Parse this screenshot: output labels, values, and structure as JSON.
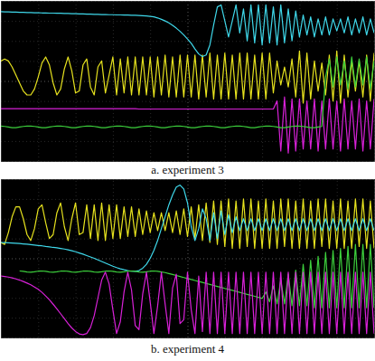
{
  "chart_data": [
    {
      "type": "line",
      "title": "a. experiment 3",
      "grid": true,
      "tick_labels": false,
      "xlim": [
        0,
        10
      ],
      "ylim": [
        -4,
        4
      ],
      "xticks": [
        0,
        1,
        2,
        3,
        4,
        5,
        6,
        7,
        8,
        9,
        10
      ],
      "yticks": [
        -4,
        -3,
        -2,
        -1,
        0,
        1,
        2,
        3,
        4
      ],
      "x": [
        0,
        0.1,
        0.2,
        0.3,
        0.4,
        0.5,
        0.6,
        0.7,
        0.8,
        0.9,
        1,
        1.1,
        1.2,
        1.3,
        1.4,
        1.5,
        1.6,
        1.7,
        1.8,
        1.9,
        2,
        2.1,
        2.2,
        2.3,
        2.4,
        2.5,
        2.6,
        2.7,
        2.8,
        2.9,
        3,
        3.1,
        3.2,
        3.3,
        3.4,
        3.5,
        3.6,
        3.7,
        3.8,
        3.9,
        4,
        4.1,
        4.2,
        4.3,
        4.4,
        4.5,
        4.6,
        4.7,
        4.8,
        4.9,
        5,
        5.1,
        5.2,
        5.3,
        5.4,
        5.5,
        5.6,
        5.7,
        5.8,
        5.9,
        6,
        6.1,
        6.2,
        6.3,
        6.4,
        6.5,
        6.6,
        6.7,
        6.8,
        6.9,
        7,
        7.1,
        7.2,
        7.3,
        7.4,
        7.5,
        7.6,
        7.7,
        7.8,
        7.9,
        8,
        8.1,
        8.2,
        8.3,
        8.4,
        8.5,
        8.6,
        8.7,
        8.8,
        8.9,
        9,
        9.1,
        9.2,
        9.3,
        9.4,
        9.5,
        9.6,
        9.7,
        9.8,
        9.9,
        10
      ],
      "series": [
        {
          "color": "#e6e21e",
          "values": [
            1.0,
            1.1,
            1.0,
            0.7,
            0.3,
            -0.1,
            -0.5,
            -0.7,
            -0.7,
            -0.4,
            0.2,
            0.9,
            1.2,
            0.8,
            -0.1,
            -0.7,
            -0.4,
            0.6,
            1.2,
            0.5,
            -0.6,
            -0.5,
            0.8,
            1.1,
            -0.3,
            -0.7,
            0.7,
            1.0,
            -0.6,
            0.3,
            1.2,
            -0.7,
            1.1,
            -0.6,
            1.2,
            -0.7,
            1.2,
            -0.7,
            1.2,
            -0.7,
            1.2,
            -0.8,
            1.2,
            -0.7,
            1.3,
            -0.8,
            1.2,
            -0.8,
            1.3,
            -0.8,
            1.3,
            -0.8,
            1.3,
            -0.9,
            1.3,
            -0.8,
            1.4,
            -0.9,
            1.3,
            -0.9,
            1.4,
            -0.9,
            1.3,
            -0.9,
            1.4,
            -0.9,
            1.4,
            -0.9,
            1.3,
            -0.9,
            1.4,
            -0.9,
            1.4,
            -0.6,
            1.0,
            -0.2,
            0.7,
            -0.3,
            1.1,
            -0.8,
            1.5,
            -1.1,
            1.4,
            -0.9,
            1.0,
            -0.5,
            0.9,
            -0.7,
            1.3,
            -1.0,
            1.5,
            -1.1,
            1.3,
            -0.8,
            1.0,
            -0.5,
            1.0,
            -0.8,
            1.3,
            -1.0,
            1.4
          ]
        },
        {
          "color": "#3fd8ea",
          "values": [
            3.46,
            3.45,
            3.45,
            3.44,
            3.44,
            3.43,
            3.43,
            3.42,
            3.42,
            3.41,
            3.41,
            3.4,
            3.4,
            3.39,
            3.39,
            3.38,
            3.38,
            3.37,
            3.37,
            3.36,
            3.36,
            3.35,
            3.35,
            3.34,
            3.34,
            3.33,
            3.33,
            3.32,
            3.32,
            3.31,
            3.31,
            3.3,
            3.3,
            3.29,
            3.29,
            3.28,
            3.28,
            3.27,
            3.26,
            3.25,
            3.23,
            3.2,
            3.15,
            3.08,
            3.0,
            2.9,
            2.78,
            2.64,
            2.48,
            2.3,
            2.1,
            1.88,
            1.6,
            1.35,
            1.22,
            1.3,
            1.8,
            2.8,
            3.7,
            3.8,
            3.0,
            2.2,
            3.0,
            3.8,
            2.4,
            3.6,
            2.0,
            3.8,
            1.9,
            3.8,
            1.8,
            3.8,
            1.9,
            3.7,
            1.8,
            3.8,
            1.9,
            3.6,
            2.0,
            3.5,
            2.2,
            3.3,
            2.3,
            3.2,
            2.2,
            3.1,
            2.3,
            3.2,
            2.3,
            3.1,
            2.5,
            3.1,
            2.4,
            3.2,
            2.3,
            3.1,
            2.4,
            3.2,
            2.3,
            3.1,
            2.4
          ]
        },
        {
          "color": "#d821d8",
          "values": [
            -1.38,
            -1.38,
            -1.38,
            -1.38,
            -1.38,
            -1.38,
            -1.38,
            -1.38,
            -1.38,
            -1.38,
            -1.38,
            -1.38,
            -1.38,
            -1.38,
            -1.38,
            -1.38,
            -1.38,
            -1.38,
            -1.38,
            -1.38,
            -1.38,
            -1.38,
            -1.38,
            -1.38,
            -1.38,
            -1.38,
            -1.38,
            -1.38,
            -1.38,
            -1.38,
            -1.38,
            -1.38,
            -1.38,
            -1.38,
            -1.38,
            -1.38,
            -1.38,
            -1.4,
            -1.4,
            -1.4,
            -1.4,
            -1.4,
            -1.4,
            -1.4,
            -1.4,
            -1.4,
            -1.4,
            -1.4,
            -1.4,
            -1.4,
            -1.4,
            -1.4,
            -1.4,
            -1.4,
            -1.4,
            -1.4,
            -1.4,
            -1.4,
            -1.4,
            -1.4,
            -1.4,
            -1.4,
            -1.4,
            -1.4,
            -1.4,
            -1.4,
            -1.4,
            -1.4,
            -1.4,
            -1.4,
            -1.4,
            -1.4,
            -1.4,
            -1.4,
            -1.0,
            -3.5,
            -0.8,
            -3.6,
            -0.9,
            -3.5,
            -0.9,
            -3.4,
            -1.0,
            -3.4,
            -0.9,
            -3.5,
            -1.0,
            -3.4,
            -0.9,
            -3.4,
            -1.0,
            -3.5,
            -0.9,
            -3.4,
            -1.0,
            -3.4,
            -0.9,
            -3.5,
            -1.0,
            -3.4,
            -0.9
          ]
        },
        {
          "color": "#3ccf3c",
          "values": [
            -2.25,
            -2.27,
            -2.3,
            -2.33,
            -2.33,
            -2.3,
            -2.27,
            -2.25,
            -2.25,
            -2.27,
            -2.3,
            -2.33,
            -2.33,
            -2.3,
            -2.27,
            -2.25,
            -2.25,
            -2.27,
            -2.3,
            -2.33,
            -2.33,
            -2.3,
            -2.27,
            -2.25,
            -2.25,
            -2.27,
            -2.3,
            -2.33,
            -2.33,
            -2.3,
            -2.27,
            -2.25,
            -2.25,
            -2.27,
            -2.3,
            -2.33,
            -2.33,
            -2.3,
            -2.27,
            -2.25,
            -2.25,
            -2.27,
            -2.3,
            -2.33,
            -2.33,
            -2.3,
            -2.27,
            -2.25,
            -2.25,
            -2.27,
            -2.3,
            -2.33,
            -2.33,
            -2.3,
            -2.27,
            -2.25,
            -2.25,
            -2.27,
            -2.3,
            -2.33,
            -2.33,
            -2.3,
            -2.27,
            -2.25,
            -2.25,
            -2.27,
            -2.3,
            -2.33,
            -2.33,
            -2.3,
            -2.27,
            -2.25,
            -2.25,
            -2.27,
            -2.3,
            -2.33,
            -2.33,
            -2.3,
            -2.27,
            -2.25,
            -2.25,
            -2.27,
            -2.3,
            -2.33,
            -2.33,
            -2.3,
            -2.27,
            0.2,
            1.1,
            -0.3,
            1.2,
            -0.2,
            1.0,
            -0.4,
            1.2,
            -0.3,
            1.1,
            -0.2,
            1.2,
            -0.4,
            1.0
          ]
        }
      ]
    },
    {
      "type": "line",
      "title": "b. experiment 4",
      "grid": true,
      "tick_labels": false,
      "xlim": [
        0,
        10
      ],
      "ylim": [
        -4,
        4
      ],
      "xticks": [
        0,
        1,
        2,
        3,
        4,
        5,
        6,
        7,
        8,
        9,
        10
      ],
      "yticks": [
        -4,
        -3,
        -2,
        -1,
        0,
        1,
        2,
        3,
        4
      ],
      "x": [
        0,
        0.1,
        0.2,
        0.3,
        0.4,
        0.5,
        0.6,
        0.7,
        0.8,
        0.9,
        1,
        1.1,
        1.2,
        1.3,
        1.4,
        1.5,
        1.6,
        1.7,
        1.8,
        1.9,
        2,
        2.1,
        2.2,
        2.3,
        2.4,
        2.5,
        2.6,
        2.7,
        2.8,
        2.9,
        3,
        3.1,
        3.2,
        3.3,
        3.4,
        3.5,
        3.6,
        3.7,
        3.8,
        3.9,
        4,
        4.1,
        4.2,
        4.3,
        4.4,
        4.5,
        4.6,
        4.7,
        4.8,
        4.9,
        5,
        5.1,
        5.2,
        5.3,
        5.4,
        5.5,
        5.6,
        5.7,
        5.8,
        5.9,
        6,
        6.1,
        6.2,
        6.3,
        6.4,
        6.5,
        6.6,
        6.7,
        6.8,
        6.9,
        7,
        7.1,
        7.2,
        7.3,
        7.4,
        7.5,
        7.6,
        7.7,
        7.8,
        7.9,
        8,
        8.1,
        8.2,
        8.3,
        8.4,
        8.5,
        8.6,
        8.7,
        8.8,
        8.9,
        9,
        9.1,
        9.2,
        9.3,
        9.4,
        9.5,
        9.6,
        9.7,
        9.8,
        9.9,
        10
      ],
      "series": [
        {
          "color": "#e6e21e",
          "values": [
            0.8,
            0.7,
            1.3,
            2.1,
            2.6,
            2.6,
            2.0,
            1.2,
            0.9,
            1.5,
            2.5,
            2.7,
            1.8,
            1.0,
            1.2,
            2.3,
            2.8,
            1.6,
            0.9,
            2.0,
            2.8,
            1.2,
            1.3,
            2.7,
            1.0,
            2.7,
            0.9,
            2.8,
            0.9,
            2.7,
            1.0,
            2.7,
            1.0,
            2.6,
            1.1,
            2.6,
            1.1,
            2.5,
            1.2,
            2.4,
            1.3,
            2.3,
            1.4,
            2.3,
            1.4,
            2.3,
            1.3,
            2.4,
            1.2,
            2.5,
            1.1,
            2.6,
            1.0,
            2.7,
            0.9,
            2.8,
            0.8,
            2.9,
            0.7,
            2.9,
            0.6,
            3.0,
            0.5,
            2.9,
            0.5,
            3.0,
            0.6,
            3.0,
            0.5,
            2.9,
            0.5,
            3.0,
            0.5,
            2.9,
            0.5,
            3.0,
            0.6,
            3.0,
            0.5,
            2.9,
            0.5,
            3.0,
            0.5,
            2.9,
            0.5,
            3.0,
            0.6,
            3.0,
            0.5,
            2.9,
            0.5,
            3.0,
            0.5,
            2.9,
            0.5,
            3.0,
            0.6,
            3.0,
            0.5,
            2.9,
            0.5
          ]
        },
        {
          "color": "#3fd8ea",
          "values": [
            0.8,
            0.79,
            0.78,
            0.77,
            0.76,
            0.75,
            0.73,
            0.71,
            0.69,
            0.67,
            0.65,
            0.63,
            0.6,
            0.58,
            0.55,
            0.53,
            0.5,
            0.47,
            0.43,
            0.38,
            0.33,
            0.27,
            0.21,
            0.14,
            0.07,
            0.0,
            -0.08,
            -0.16,
            -0.24,
            -0.32,
            -0.4,
            -0.47,
            -0.53,
            -0.58,
            -0.62,
            -0.65,
            -0.66,
            -0.62,
            -0.5,
            -0.3,
            0.0,
            0.4,
            0.9,
            1.5,
            2.1,
            2.7,
            3.2,
            3.6,
            3.7,
            3.5,
            2.8,
            1.6,
            0.9,
            1.5,
            2.5,
            2.0,
            0.9,
            2.3,
            1.0,
            2.4,
            1.2,
            2.2,
            1.3,
            2.1,
            1.4,
            2.0,
            1.4,
            2.0,
            1.4,
            2.0,
            1.4,
            2.0,
            1.4,
            2.0,
            1.4,
            2.0,
            1.4,
            2.0,
            1.4,
            2.0,
            1.4,
            2.0,
            1.4,
            2.0,
            1.4,
            2.0,
            1.4,
            2.0,
            1.4,
            2.0,
            1.4,
            2.0,
            1.4,
            2.0,
            1.4,
            2.0,
            1.4,
            2.0,
            1.4,
            2.0,
            1.4
          ]
        },
        {
          "color": "#3ccf3c",
          "values": [
            null,
            null,
            null,
            null,
            null,
            -0.64,
            -0.66,
            -0.69,
            -0.7,
            -0.68,
            -0.65,
            -0.64,
            -0.66,
            -0.69,
            -0.7,
            -0.68,
            -0.65,
            -0.64,
            -0.66,
            -0.69,
            -0.7,
            -0.68,
            -0.65,
            -0.64,
            -0.66,
            -0.69,
            -0.7,
            -0.68,
            -0.65,
            -0.64,
            -0.66,
            -0.69,
            -0.7,
            -0.68,
            -0.65,
            -0.64,
            -0.66,
            -0.69,
            -0.7,
            -0.68,
            -0.65,
            -0.64,
            -0.66,
            -0.69,
            -0.72,
            -0.77,
            -0.82,
            -0.87,
            -0.92,
            -0.97,
            -1.02,
            -1.07,
            -1.12,
            -1.17,
            -1.22,
            -1.27,
            -1.32,
            -1.37,
            -1.42,
            -1.47,
            -1.52,
            -1.57,
            -1.62,
            -1.67,
            -1.72,
            -1.77,
            -1.82,
            -1.87,
            -1.92,
            -1.97,
            -2.03,
            -1.7,
            -2.2,
            -1.4,
            -2.3,
            -1.1,
            -2.3,
            -0.8,
            -2.4,
            -0.6,
            -2.4,
            -0.3,
            -2.4,
            -0.1,
            -2.5,
            0.1,
            -2.5,
            0.3,
            -2.5,
            0.4,
            -2.5,
            0.5,
            -2.5,
            0.6,
            -2.5,
            0.7,
            -2.5,
            0.7,
            -2.5,
            0.7,
            -2.5
          ]
        },
        {
          "color": "#d821d8",
          "values": [
            -0.89,
            -0.92,
            -0.95,
            -0.99,
            -1.04,
            -1.1,
            -1.17,
            -1.25,
            -1.34,
            -1.45,
            -1.57,
            -1.72,
            -1.9,
            -2.1,
            -2.32,
            -2.55,
            -2.8,
            -3.05,
            -3.3,
            -3.52,
            -3.7,
            -3.82,
            -3.86,
            -3.8,
            -3.5,
            -2.9,
            -2.0,
            -1.1,
            -0.7,
            -1.3,
            -2.6,
            -3.8,
            -3.2,
            -1.7,
            -0.7,
            -1.6,
            -3.4,
            -3.6,
            -1.8,
            -0.7,
            -2.2,
            -3.8,
            -2.4,
            -0.7,
            -2.3,
            -3.8,
            -1.5,
            -0.8,
            -3.3,
            -3.1,
            -0.7,
            -2.6,
            -3.8,
            -0.9,
            -3.7,
            -0.7,
            -3.8,
            -0.7,
            -3.8,
            -0.7,
            -3.8,
            -0.7,
            -3.8,
            -0.7,
            -3.8,
            -0.7,
            -3.8,
            -0.7,
            -3.8,
            -0.7,
            -3.8,
            -0.7,
            -3.8,
            -0.7,
            -3.8,
            -0.7,
            -3.8,
            -0.7,
            -3.8,
            -0.7,
            -3.8,
            -0.7,
            -3.8,
            -0.7,
            -3.8,
            -0.7,
            -3.8,
            -0.7,
            -3.8,
            -0.7,
            -3.8,
            -0.7,
            -3.8,
            -0.7,
            -3.8,
            -0.7,
            -3.8,
            -0.7,
            -3.8,
            -0.7,
            -3.8
          ]
        }
      ]
    }
  ]
}
